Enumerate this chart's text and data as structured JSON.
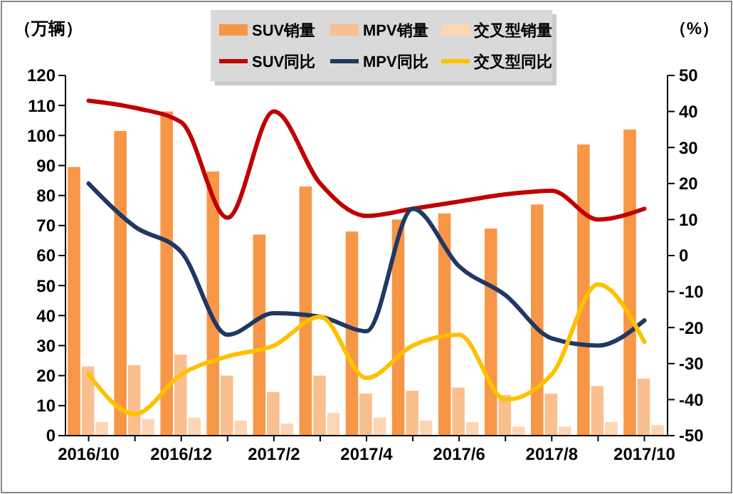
{
  "chart_data": {
    "type": "bar",
    "ylabel": "（万辆）",
    "y2label": "（%）",
    "categories": [
      "2016/10",
      null,
      "2016/12",
      null,
      "2017/2",
      null,
      "2017/4",
      null,
      "2017/6",
      null,
      "2017/8",
      null,
      "2017/10"
    ],
    "series": [
      {
        "name": "SUV销量",
        "color": "#f79646",
        "values": [
          89.5,
          101.5,
          108,
          88,
          67,
          83,
          68,
          72,
          74,
          69,
          77,
          97,
          102
        ]
      },
      {
        "name": "MPV销量",
        "color": "#fabf8f",
        "values": [
          23,
          23.5,
          27,
          20,
          14.5,
          20,
          14,
          15,
          16,
          13.5,
          14,
          16.5,
          19
        ]
      },
      {
        "name": "交叉型销量",
        "color": "#fcd5b4",
        "values": [
          4.5,
          5.5,
          6,
          5,
          4,
          7.5,
          6,
          5,
          4.5,
          3,
          3,
          4.5,
          3.5
        ]
      },
      {
        "name": "SUV同比",
        "type": "line",
        "axis": "y2",
        "color": "#c00000",
        "values": [
          43,
          41,
          37,
          10.5,
          40,
          20,
          11,
          13,
          15,
          17,
          18,
          10,
          13
        ]
      },
      {
        "name": "MPV同比",
        "type": "line",
        "axis": "y2",
        "color": "#1f3864",
        "values": [
          20,
          8,
          1,
          -22,
          -16,
          -17,
          -21,
          13,
          -3,
          -11,
          -23,
          -25,
          -18
        ]
      },
      {
        "name": "交叉型同比",
        "type": "line",
        "axis": "y2",
        "color": "#ffc000",
        "values": [
          -33,
          -44,
          -33,
          -28,
          -25,
          -17,
          -34,
          -25,
          -22,
          -40,
          -33,
          -8,
          -24
        ]
      }
    ],
    "ylim": [
      0,
      120
    ],
    "yticks": [
      0,
      10,
      20,
      30,
      40,
      50,
      60,
      70,
      80,
      90,
      100,
      110,
      120
    ],
    "y2lim": [
      -50,
      50
    ],
    "y2ticks": [
      -50,
      -40,
      -30,
      -20,
      -10,
      0,
      10,
      20,
      30,
      40,
      50
    ],
    "legend": "top",
    "grid": false,
    "line_style": "solid",
    "marker": "none"
  }
}
